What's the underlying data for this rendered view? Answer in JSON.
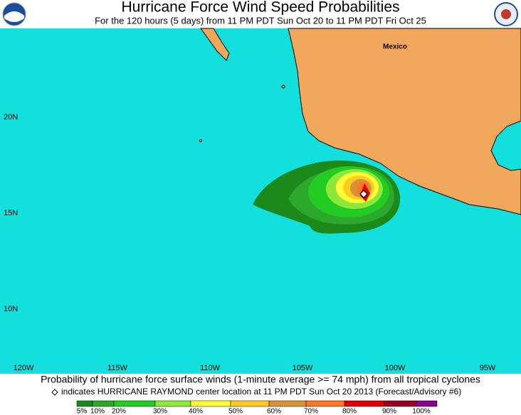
{
  "header": {
    "title": "Hurricane Force Wind Speed Probabilities",
    "subtitle": "For the 120 hours (5 days) from 11 PM PDT Sun Oct 20 to 11 PM PDT Fri Oct 25"
  },
  "map": {
    "place_labels": [
      "Mexico"
    ],
    "lat_labels": [
      "20N",
      "15N",
      "10N"
    ],
    "lon_labels": [
      "120W",
      "115W",
      "110W",
      "105W",
      "100W",
      "95W"
    ]
  },
  "footer": {
    "caption": "Probability of hurricane force surface winds (1-minute average >= 74 mph) from all tropical cyclones",
    "note": "indicates HURRICANE RAYMOND center location at 11 PM PDT Sun Oct 20 2013 (Forecast/Advisory #6)"
  },
  "legend": [
    {
      "label": "5%",
      "color": "#1b8a1b"
    },
    {
      "label": "10%",
      "color": "#2ca82c"
    },
    {
      "label": "20%",
      "color": "#22cc22"
    },
    {
      "label": "30%",
      "color": "#8ee83a"
    },
    {
      "label": "40%",
      "color": "#ffff33"
    },
    {
      "label": "50%",
      "color": "#ffcc22"
    },
    {
      "label": "60%",
      "color": "#d89238"
    },
    {
      "label": "70%",
      "color": "#ff7722"
    },
    {
      "label": "80%",
      "color": "#dd0000"
    },
    {
      "label": "90%",
      "color": "#990022"
    },
    {
      "label": "100%",
      "color": "#880088"
    }
  ]
}
